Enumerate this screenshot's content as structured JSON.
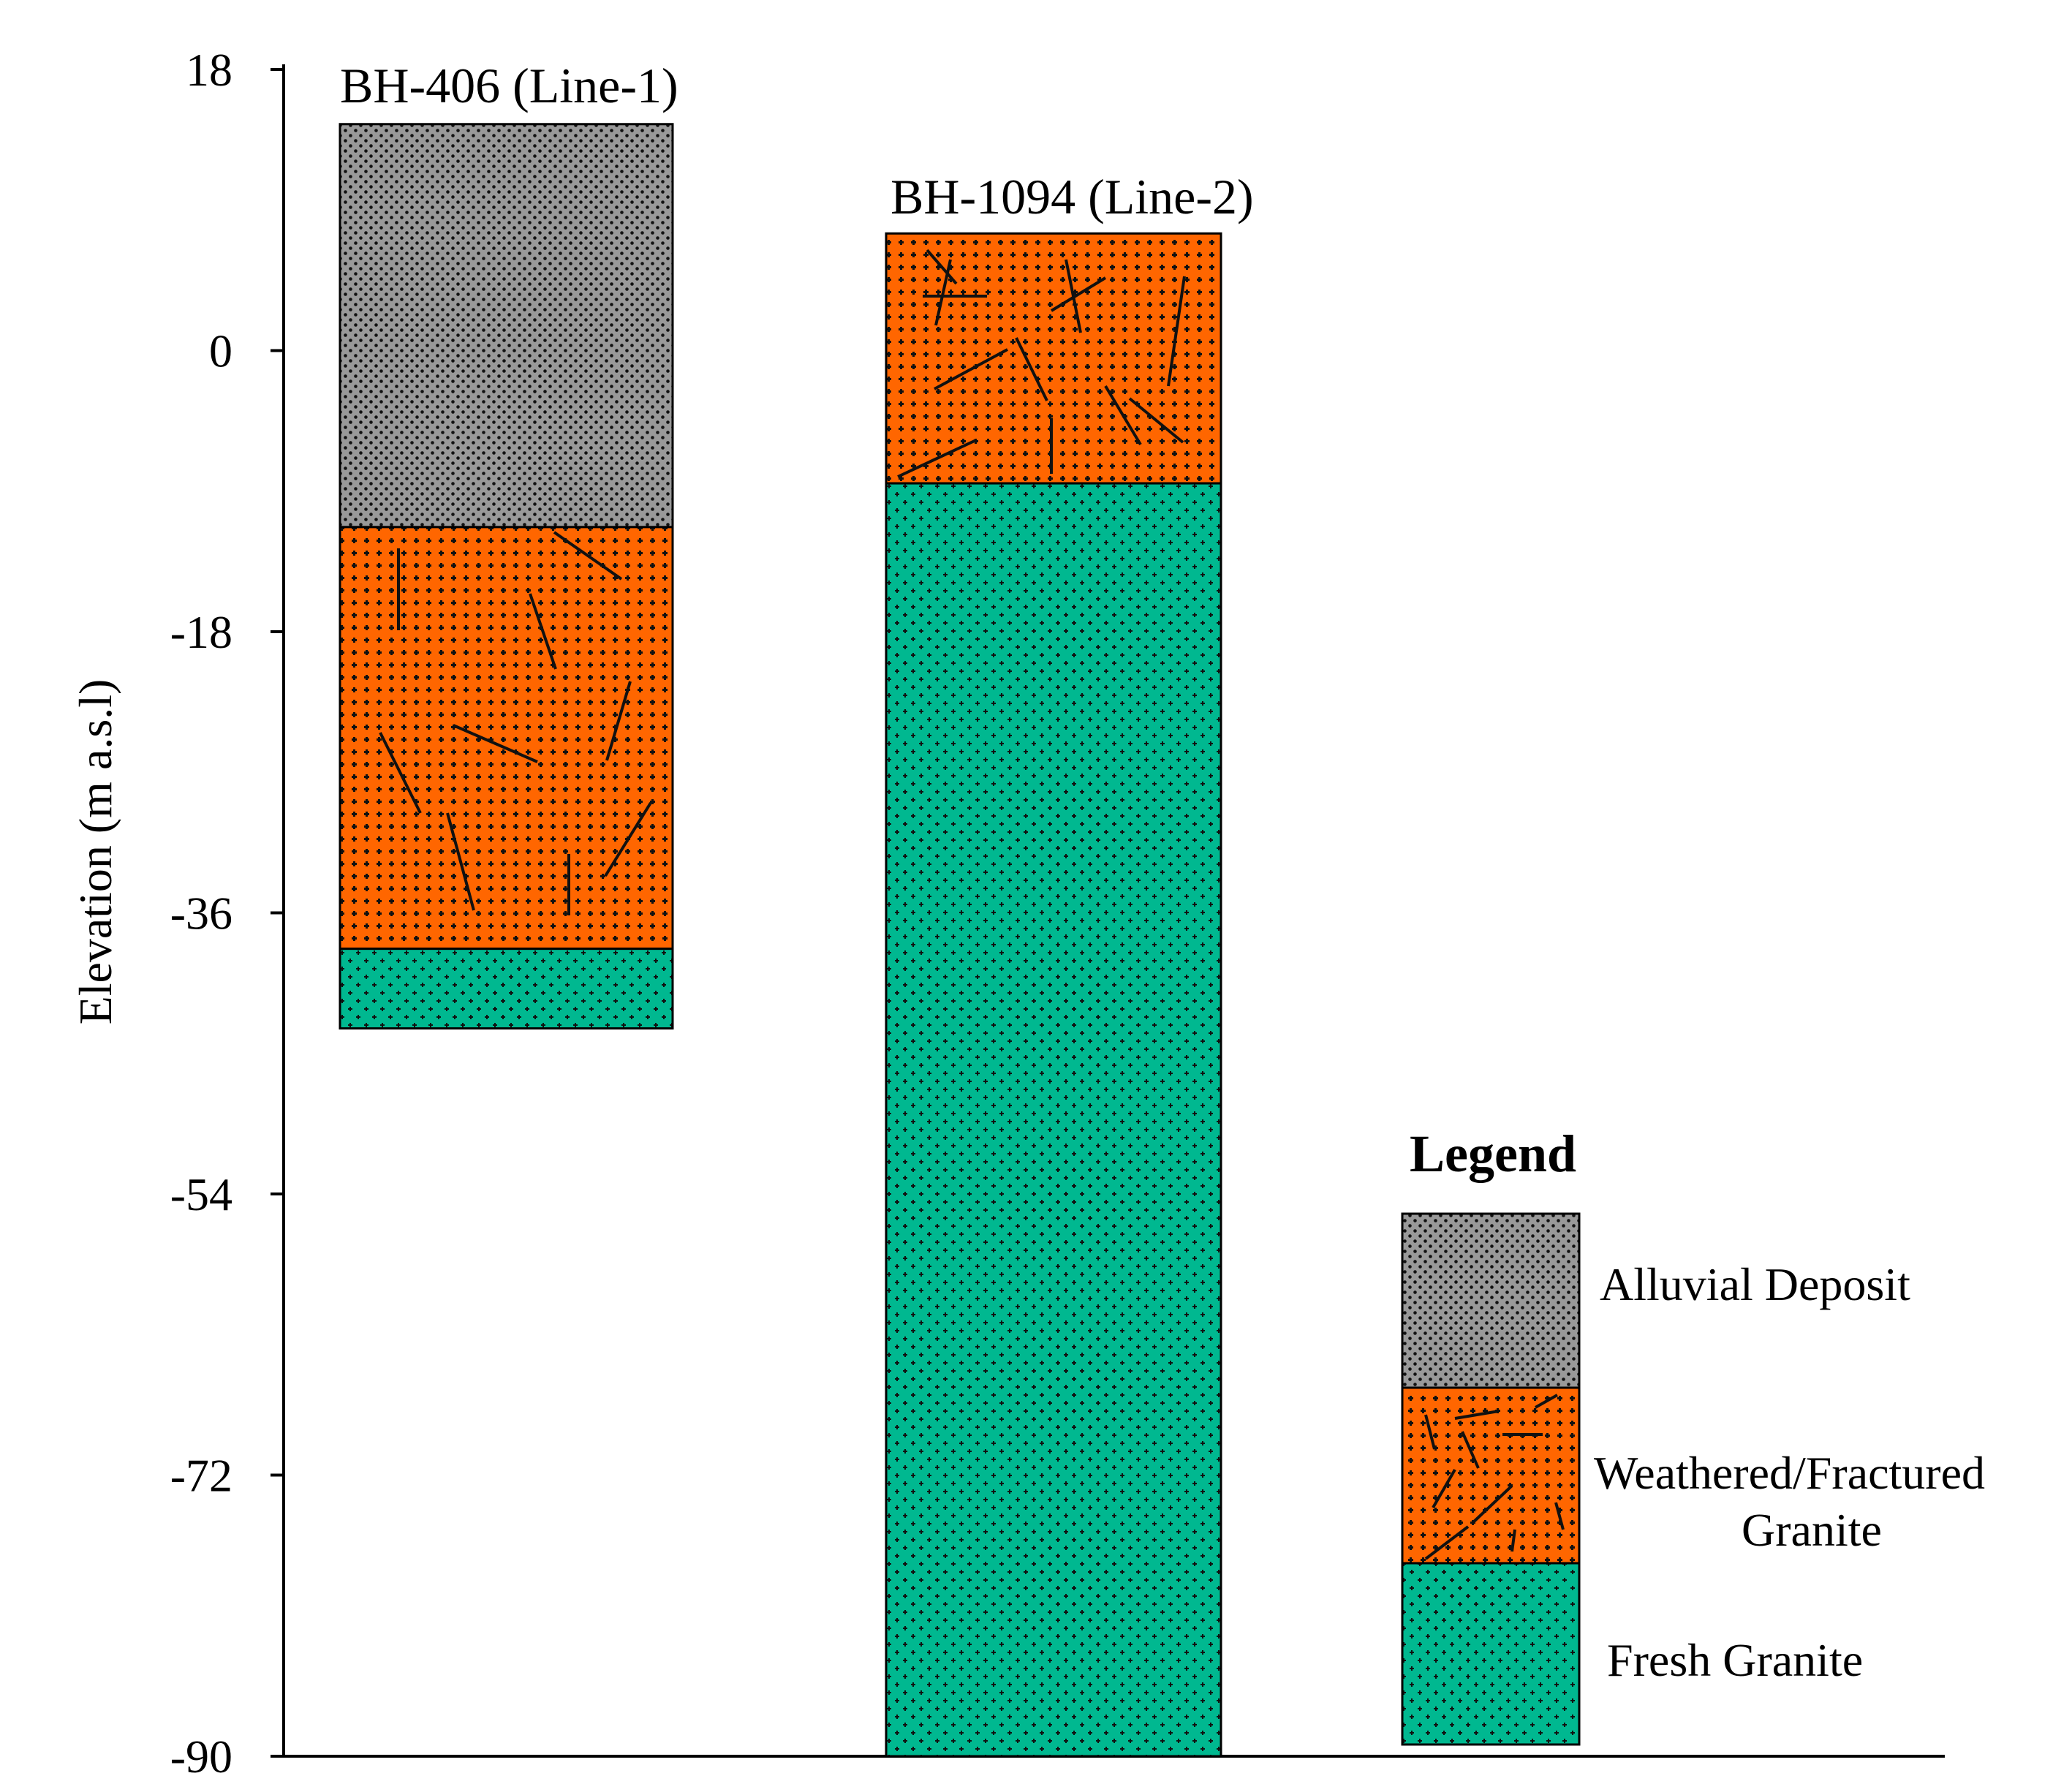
{
  "chart_data": {
    "type": "stratigraphic-column",
    "ylabel": "Elevation (m a.s.l)",
    "ylim": [
      -90,
      18
    ],
    "yticks": [
      18,
      0,
      -18,
      -36,
      -54,
      -72,
      -90
    ],
    "colors": {
      "alluvial": "#999999",
      "weathered": "#ff6600",
      "fresh": "#00b890"
    },
    "boreholes": [
      {
        "id": "bh406",
        "label": "BH-406 (Line-1)",
        "layers": [
          {
            "unit": "alluvial",
            "top": 14.5,
            "bottom": -11.3
          },
          {
            "unit": "weathered",
            "top": -11.3,
            "bottom": -38.3
          },
          {
            "unit": "fresh",
            "top": -38.3,
            "bottom": -43.4
          }
        ]
      },
      {
        "id": "bh1094",
        "label": "BH-1094 (Line-2)",
        "layers": [
          {
            "unit": "weathered",
            "top": 7.5,
            "bottom": -8.5
          },
          {
            "unit": "fresh",
            "top": -8.5,
            "bottom": -90
          }
        ]
      }
    ],
    "legend": {
      "title": "Legend",
      "items": [
        {
          "unit": "alluvial",
          "label": "Alluvial Deposit"
        },
        {
          "unit": "weathered",
          "label_line1": "Weathered/Fractured",
          "label_line2": "Granite"
        },
        {
          "unit": "fresh",
          "label": "Fresh Granite"
        }
      ]
    }
  }
}
